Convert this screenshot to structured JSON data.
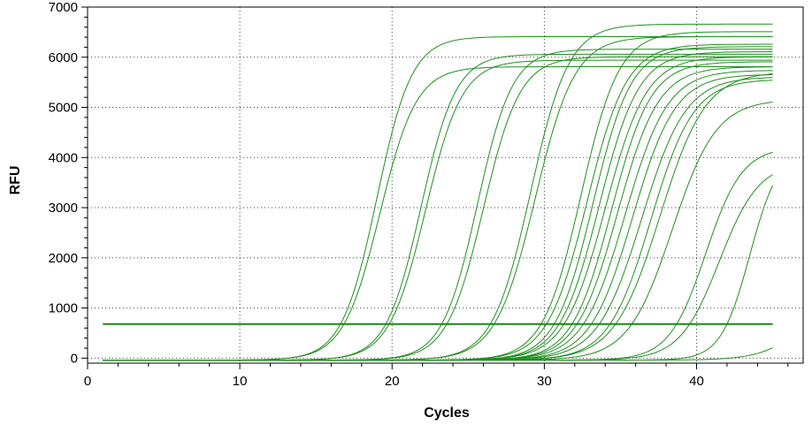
{
  "chart_data": {
    "type": "line",
    "title": "",
    "xlabel": "Cycles",
    "ylabel": "RFU",
    "xlim": [
      0,
      47
    ],
    "ylim": [
      -100,
      7000
    ],
    "xticks": [
      0,
      10,
      20,
      30,
      40
    ],
    "yticks": [
      0,
      1000,
      2000,
      3000,
      4000,
      5000,
      6000,
      7000
    ],
    "grid": true,
    "legend": "none",
    "line_color": "#1f8f1f",
    "threshold_color": "#1a861a",
    "threshold": 680,
    "x_range": [
      1,
      45
    ],
    "curve_model": "sigmoid: baseline + plateau / (1 + exp(-(cycle - midpoint) / slope))",
    "series": [
      {
        "midpoint": 19.0,
        "slope": 1.15,
        "plateau": 6450,
        "baseline": -40
      },
      {
        "midpoint": 19.2,
        "slope": 1.2,
        "plateau": 5850,
        "baseline": -40
      },
      {
        "midpoint": 21.9,
        "slope": 1.15,
        "plateau": 6100,
        "baseline": -40
      },
      {
        "midpoint": 22.2,
        "slope": 1.2,
        "plateau": 5980,
        "baseline": -40
      },
      {
        "midpoint": 25.6,
        "slope": 1.15,
        "plateau": 6200,
        "baseline": -40
      },
      {
        "midpoint": 26.0,
        "slope": 1.2,
        "plateau": 6050,
        "baseline": -40
      },
      {
        "midpoint": 29.1,
        "slope": 1.25,
        "plateau": 6700,
        "baseline": -40
      },
      {
        "midpoint": 29.4,
        "slope": 1.3,
        "plateau": 6450,
        "baseline": -40
      },
      {
        "midpoint": 32.4,
        "slope": 1.25,
        "plateau": 6550,
        "baseline": -40
      },
      {
        "midpoint": 32.8,
        "slope": 1.3,
        "plateau": 6300,
        "baseline": -40
      },
      {
        "midpoint": 33.2,
        "slope": 1.25,
        "plateau": 6250,
        "baseline": -40
      },
      {
        "midpoint": 33.6,
        "slope": 1.3,
        "plateau": 6150,
        "baseline": -40
      },
      {
        "midpoint": 34.0,
        "slope": 1.35,
        "plateau": 6050,
        "baseline": -40
      },
      {
        "midpoint": 34.4,
        "slope": 1.3,
        "plateau": 5950,
        "baseline": -40
      },
      {
        "midpoint": 34.8,
        "slope": 1.35,
        "plateau": 5850,
        "baseline": -40
      },
      {
        "midpoint": 35.3,
        "slope": 1.4,
        "plateau": 5780,
        "baseline": -40
      },
      {
        "midpoint": 35.8,
        "slope": 1.4,
        "plateau": 5700,
        "baseline": -40
      },
      {
        "midpoint": 36.4,
        "slope": 1.45,
        "plateau": 5650,
        "baseline": -40
      },
      {
        "midpoint": 37.0,
        "slope": 1.4,
        "plateau": 5600,
        "baseline": -40
      },
      {
        "midpoint": 37.6,
        "slope": 1.5,
        "plateau": 5750,
        "baseline": -40
      },
      {
        "midpoint": 38.4,
        "slope": 1.45,
        "plateau": 5200,
        "baseline": -40
      },
      {
        "midpoint": 40.6,
        "slope": 1.2,
        "plateau": 4250,
        "baseline": -40
      },
      {
        "midpoint": 41.5,
        "slope": 1.3,
        "plateau": 3950,
        "baseline": -40
      },
      {
        "midpoint": 43.5,
        "slope": 0.95,
        "plateau": 4200,
        "baseline": -40
      },
      {
        "midpoint": 48.5,
        "slope": 1.5,
        "plateau": 2800,
        "baseline": -40
      }
    ]
  }
}
